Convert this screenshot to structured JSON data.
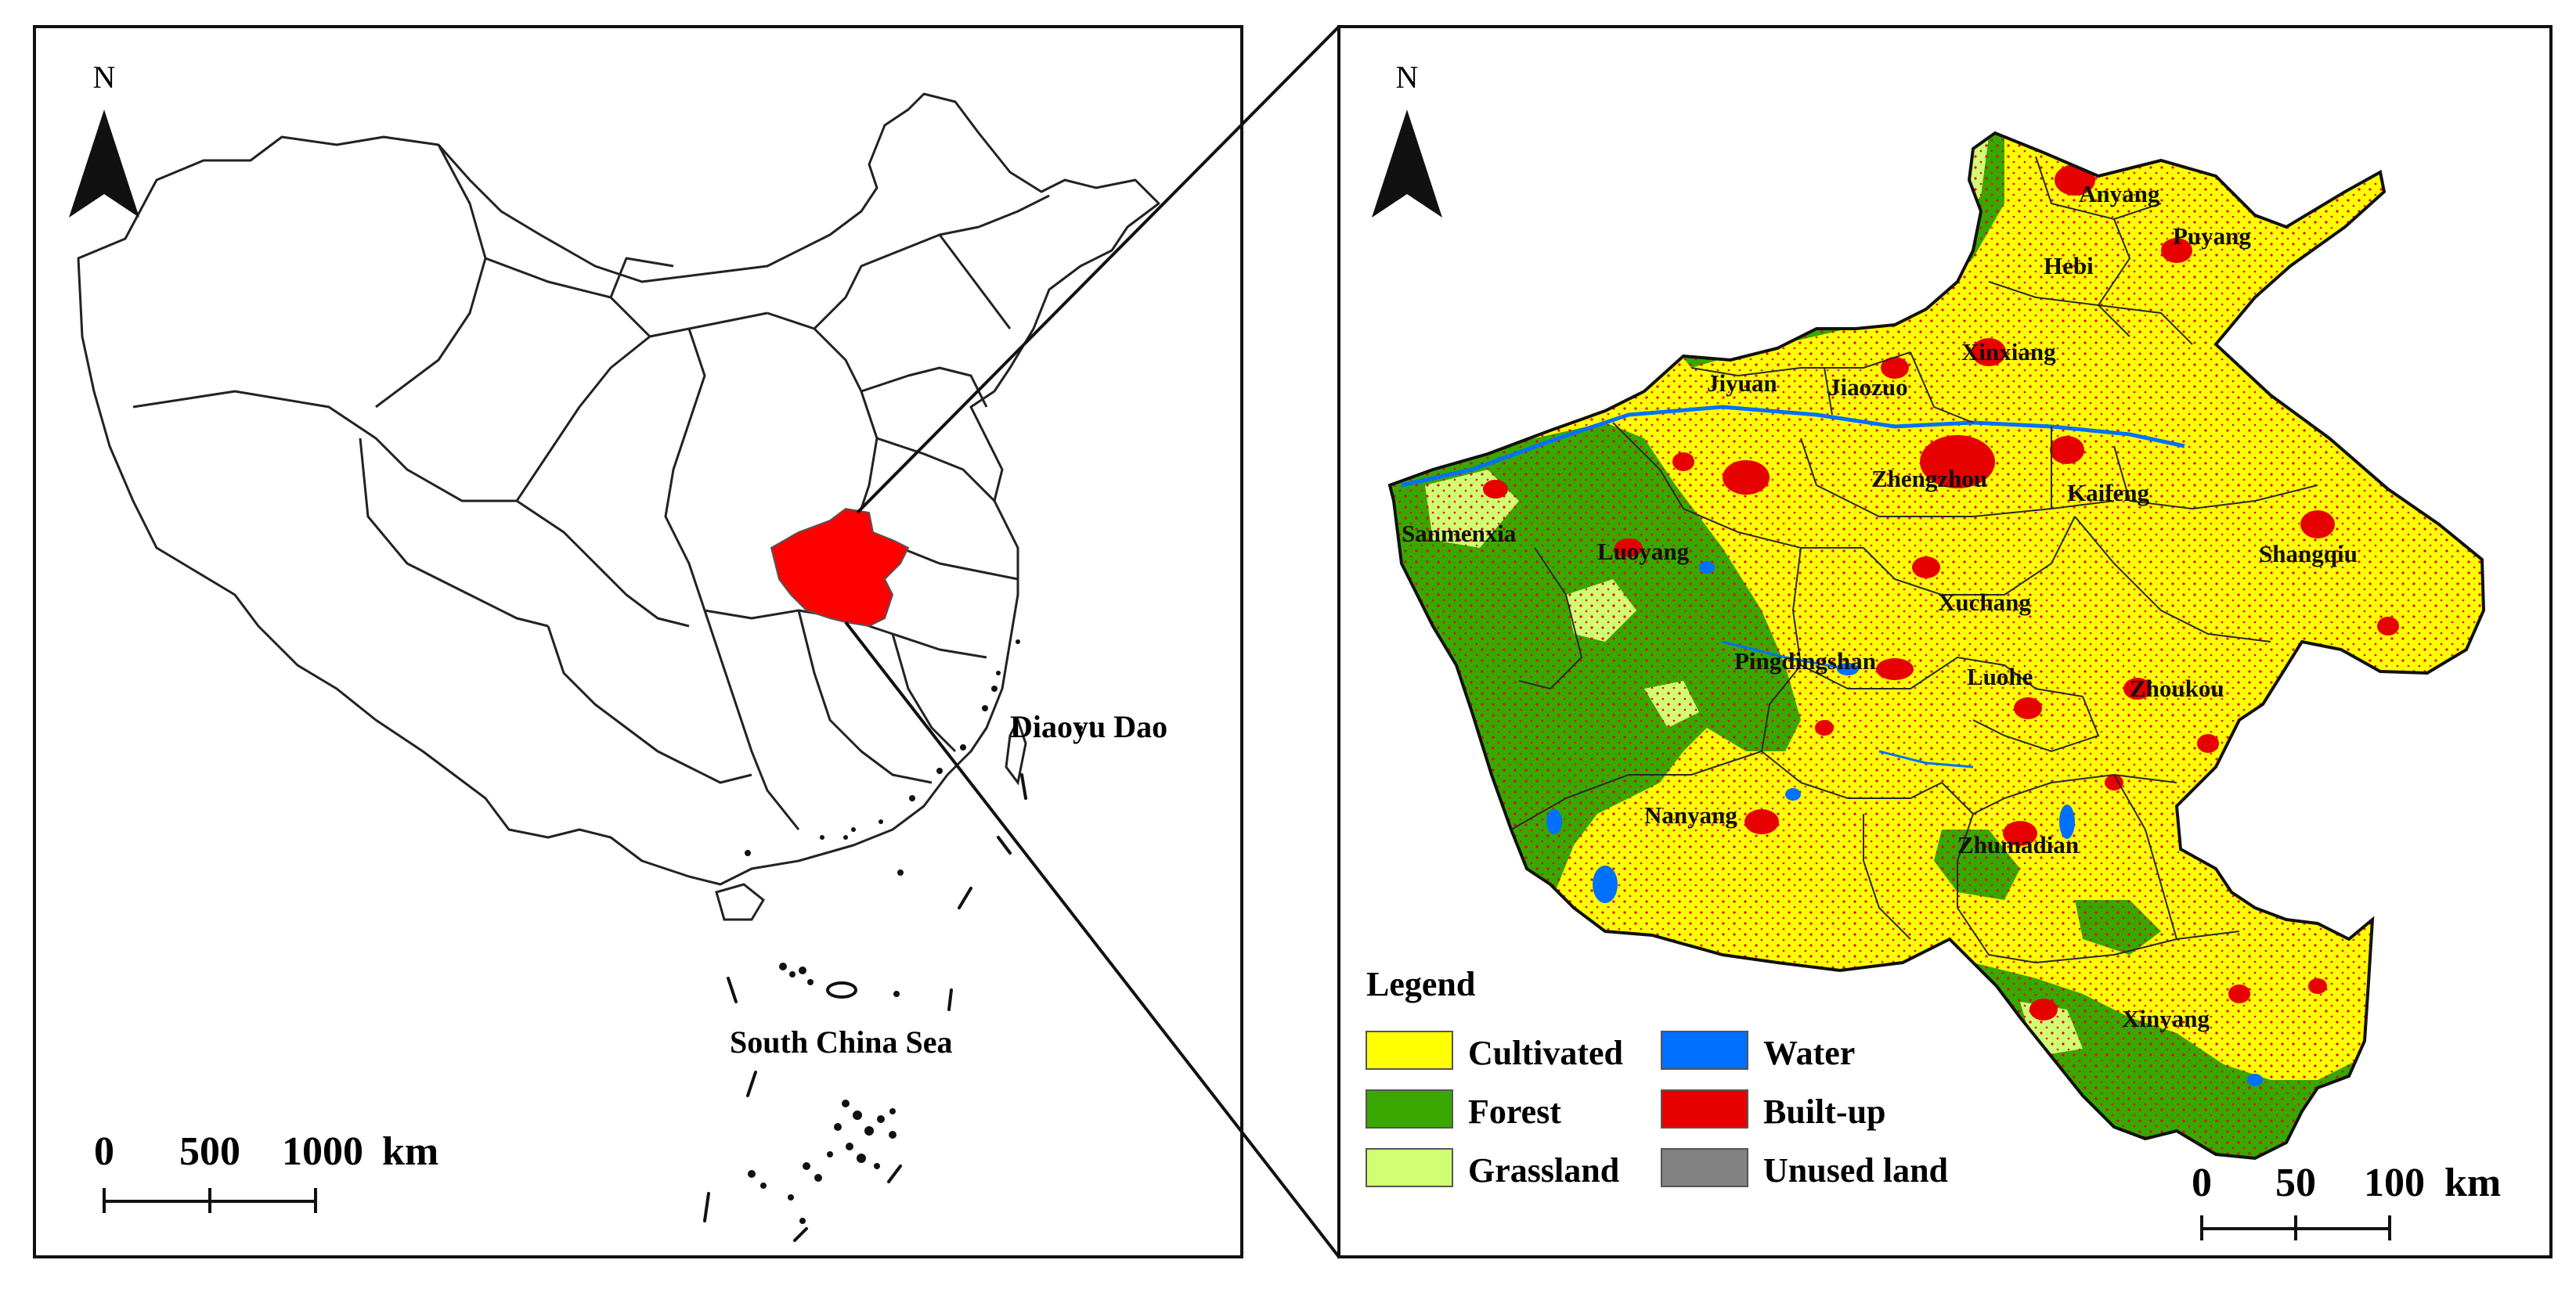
{
  "left_panel": {
    "north_label": "N",
    "region_labels": [
      {
        "key": "diaoyu",
        "text": "Diaoyu Dao"
      },
      {
        "key": "scs",
        "text": "South China Sea"
      }
    ],
    "scale_bar": {
      "ticks": [
        "0",
        "500",
        "1000"
      ],
      "unit": "km"
    },
    "highlight_color": "#ff0000"
  },
  "right_panel": {
    "north_label": "N",
    "cities": [
      "Anyang",
      "Puyang",
      "Hebi",
      "Xinxiang",
      "Jiyuan",
      "Jiaozuo",
      "Zhengzhou",
      "Kaifeng",
      "Sanmenxia",
      "Luoyang",
      "Shangqiu",
      "Xuchang",
      "Pingdingshan",
      "Luohe",
      "Zhoukou",
      "Nanyang",
      "Zhumadian",
      "Xinyang"
    ],
    "legend": {
      "title": "Legend",
      "items": [
        {
          "label": "Cultivated",
          "color": "#ffff00"
        },
        {
          "label": "Water",
          "color": "#0070ff"
        },
        {
          "label": "Forest",
          "color": "#38a800"
        },
        {
          "label": "Built-up",
          "color": "#e60000"
        },
        {
          "label": "Grassland",
          "color": "#d1ff73"
        },
        {
          "label": "Unused land",
          "color": "#828282"
        }
      ]
    },
    "scale_bar": {
      "ticks": [
        "0",
        "50",
        "100"
      ],
      "unit": "km"
    }
  }
}
